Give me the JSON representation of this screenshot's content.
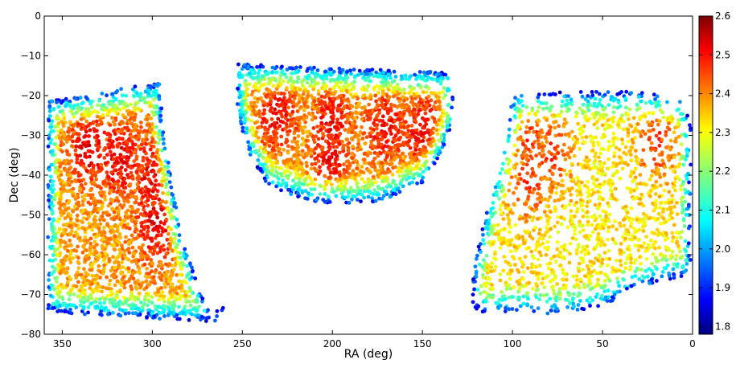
{
  "chart_data": {
    "type": "scatter",
    "title": "",
    "xlabel": "RA (deg)",
    "ylabel": "Dec (deg)",
    "xlim": [
      360,
      0
    ],
    "ylim": [
      -80,
      0
    ],
    "x_ticks": [
      350,
      300,
      250,
      200,
      150,
      100,
      50,
      0
    ],
    "y_ticks": [
      0,
      -10,
      -20,
      -30,
      -40,
      -50,
      -60,
      -70,
      -80
    ],
    "x_tick_labels": [
      "350",
      "300",
      "250",
      "200",
      "150",
      "100",
      "50",
      "0"
    ],
    "y_tick_labels": [
      "0",
      "−10",
      "−20",
      "−30",
      "−40",
      "−50",
      "−60",
      "−70",
      "−80"
    ],
    "grid": false,
    "colorbar": {
      "colormap": "jet",
      "range": [
        1.78,
        2.6
      ],
      "ticks": [
        1.8,
        1.9,
        2.0,
        2.1,
        2.2,
        2.3,
        2.4,
        2.5,
        2.6
      ],
      "tick_labels": [
        "1.8",
        "1.9",
        "2.0",
        "2.1",
        "2.2",
        "2.3",
        "2.4",
        "2.5",
        "2.6"
      ],
      "placement": "right"
    },
    "regions": [
      {
        "polygon": [
          [
            358,
            -21
          ],
          [
            335,
            -20
          ],
          [
            315,
            -18
          ],
          [
            296,
            -17
          ],
          [
            294,
            -28
          ],
          [
            290,
            -40
          ],
          [
            284,
            -55
          ],
          [
            276,
            -66
          ],
          [
            268,
            -75
          ],
          [
            259,
            -73
          ],
          [
            265,
            -77
          ],
          [
            300,
            -76
          ],
          [
            340,
            -75
          ],
          [
            358,
            -74
          ]
        ],
        "core": [
          [
            335,
            -33
          ],
          [
            300,
            -40
          ],
          [
            298,
            -52
          ],
          [
            318,
            -36
          ]
        ],
        "edge_value": 2.03,
        "core_value": 2.43,
        "n_points": 2300
      },
      {
        "polygon": [
          [
            253,
            -12
          ],
          [
            200,
            -13
          ],
          [
            135,
            -14
          ],
          [
            132,
            -25
          ],
          [
            140,
            -35
          ],
          [
            150,
            -42
          ],
          [
            175,
            -47
          ],
          [
            210,
            -47
          ],
          [
            235,
            -43
          ],
          [
            246,
            -35
          ],
          [
            253,
            -24
          ]
        ],
        "core": [
          [
            230,
            -25
          ],
          [
            200,
            -27
          ],
          [
            170,
            -28
          ],
          [
            150,
            -29
          ],
          [
            200,
            -35
          ]
        ],
        "edge_value": 2.02,
        "core_value": 2.42,
        "n_points": 2200
      },
      {
        "polygon": [
          [
            100,
            -20
          ],
          [
            70,
            -19
          ],
          [
            30,
            -19
          ],
          [
            5,
            -21
          ],
          [
            1,
            -28
          ],
          [
            1,
            -65
          ],
          [
            30,
            -68
          ],
          [
            50,
            -73
          ],
          [
            75,
            -75
          ],
          [
            100,
            -74
          ],
          [
            115,
            -75
          ],
          [
            123,
            -73
          ],
          [
            121,
            -62
          ],
          [
            115,
            -50
          ],
          [
            108,
            -38
          ],
          [
            102,
            -28
          ]
        ],
        "core": [
          [
            90,
            -32
          ],
          [
            78,
            -35
          ],
          [
            90,
            -42
          ],
          [
            20,
            -32
          ]
        ],
        "edge_value": 2.02,
        "core_value": 2.37,
        "n_points": 1900
      }
    ],
    "value_notes": "Point colour encodes a third quantity on the colorbar scale (1.8–2.6); values are highest (≈2.4–2.5) in the interior of each sky region and lowest (≈1.9–2.0) along the region boundaries."
  }
}
